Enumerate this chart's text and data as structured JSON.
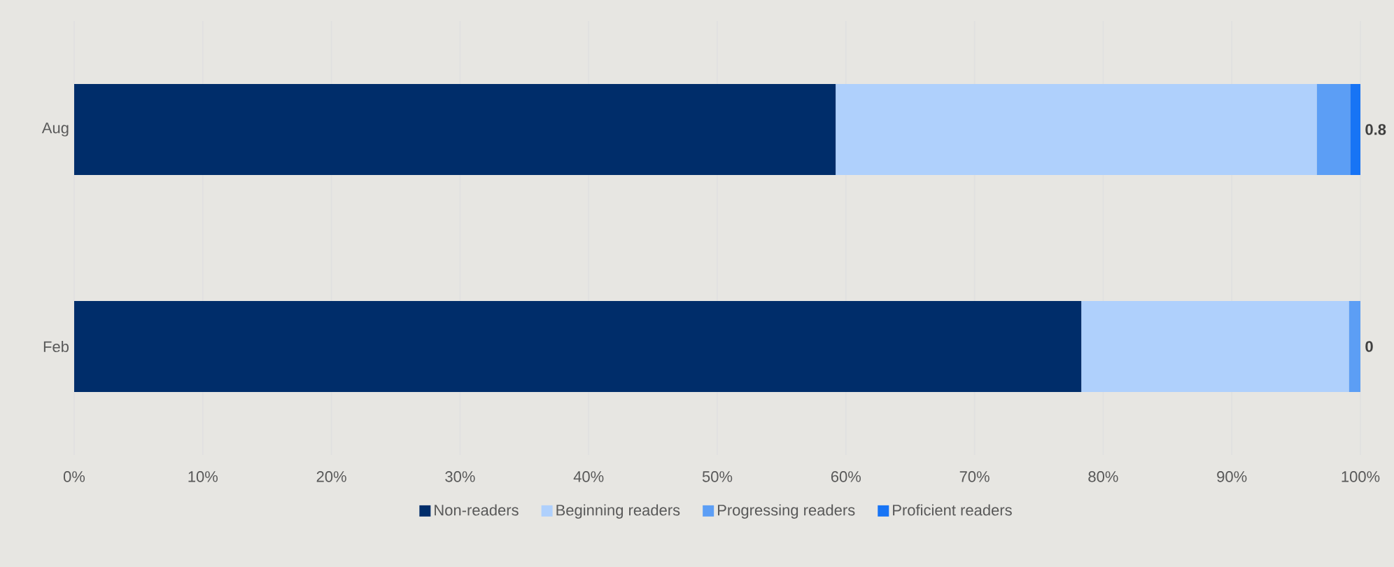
{
  "chart_data": {
    "type": "bar",
    "orientation": "horizontal",
    "stacked": true,
    "categories": [
      "Aug",
      "Feb"
    ],
    "series": [
      {
        "name": "Non-readers",
        "color": "#002d6a",
        "values": [
          59.2,
          78.3
        ]
      },
      {
        "name": "Beginning readers",
        "color": "#afd0fc",
        "values": [
          37.4,
          20.8
        ]
      },
      {
        "name": "Progressing readers",
        "color": "#5c9ef5",
        "values": [
          2.6,
          0.9
        ]
      },
      {
        "name": "Proficient readers",
        "color": "#1774f5",
        "values": [
          0.8,
          0
        ],
        "value_labels": [
          "0.8",
          "0"
        ]
      }
    ],
    "xlim": [
      0,
      100
    ],
    "xticks": [
      {
        "value": 0,
        "label": "0%"
      },
      {
        "value": 10,
        "label": "10%"
      },
      {
        "value": 20,
        "label": "20%"
      },
      {
        "value": 30,
        "label": "30%"
      },
      {
        "value": 40,
        "label": "40%"
      },
      {
        "value": 50,
        "label": "50%"
      },
      {
        "value": 60,
        "label": "60%"
      },
      {
        "value": 70,
        "label": "70%"
      },
      {
        "value": 80,
        "label": "80%"
      },
      {
        "value": 90,
        "label": "90%"
      },
      {
        "value": 100,
        "label": "100%"
      }
    ],
    "grid": "x",
    "legend": "bottom"
  }
}
